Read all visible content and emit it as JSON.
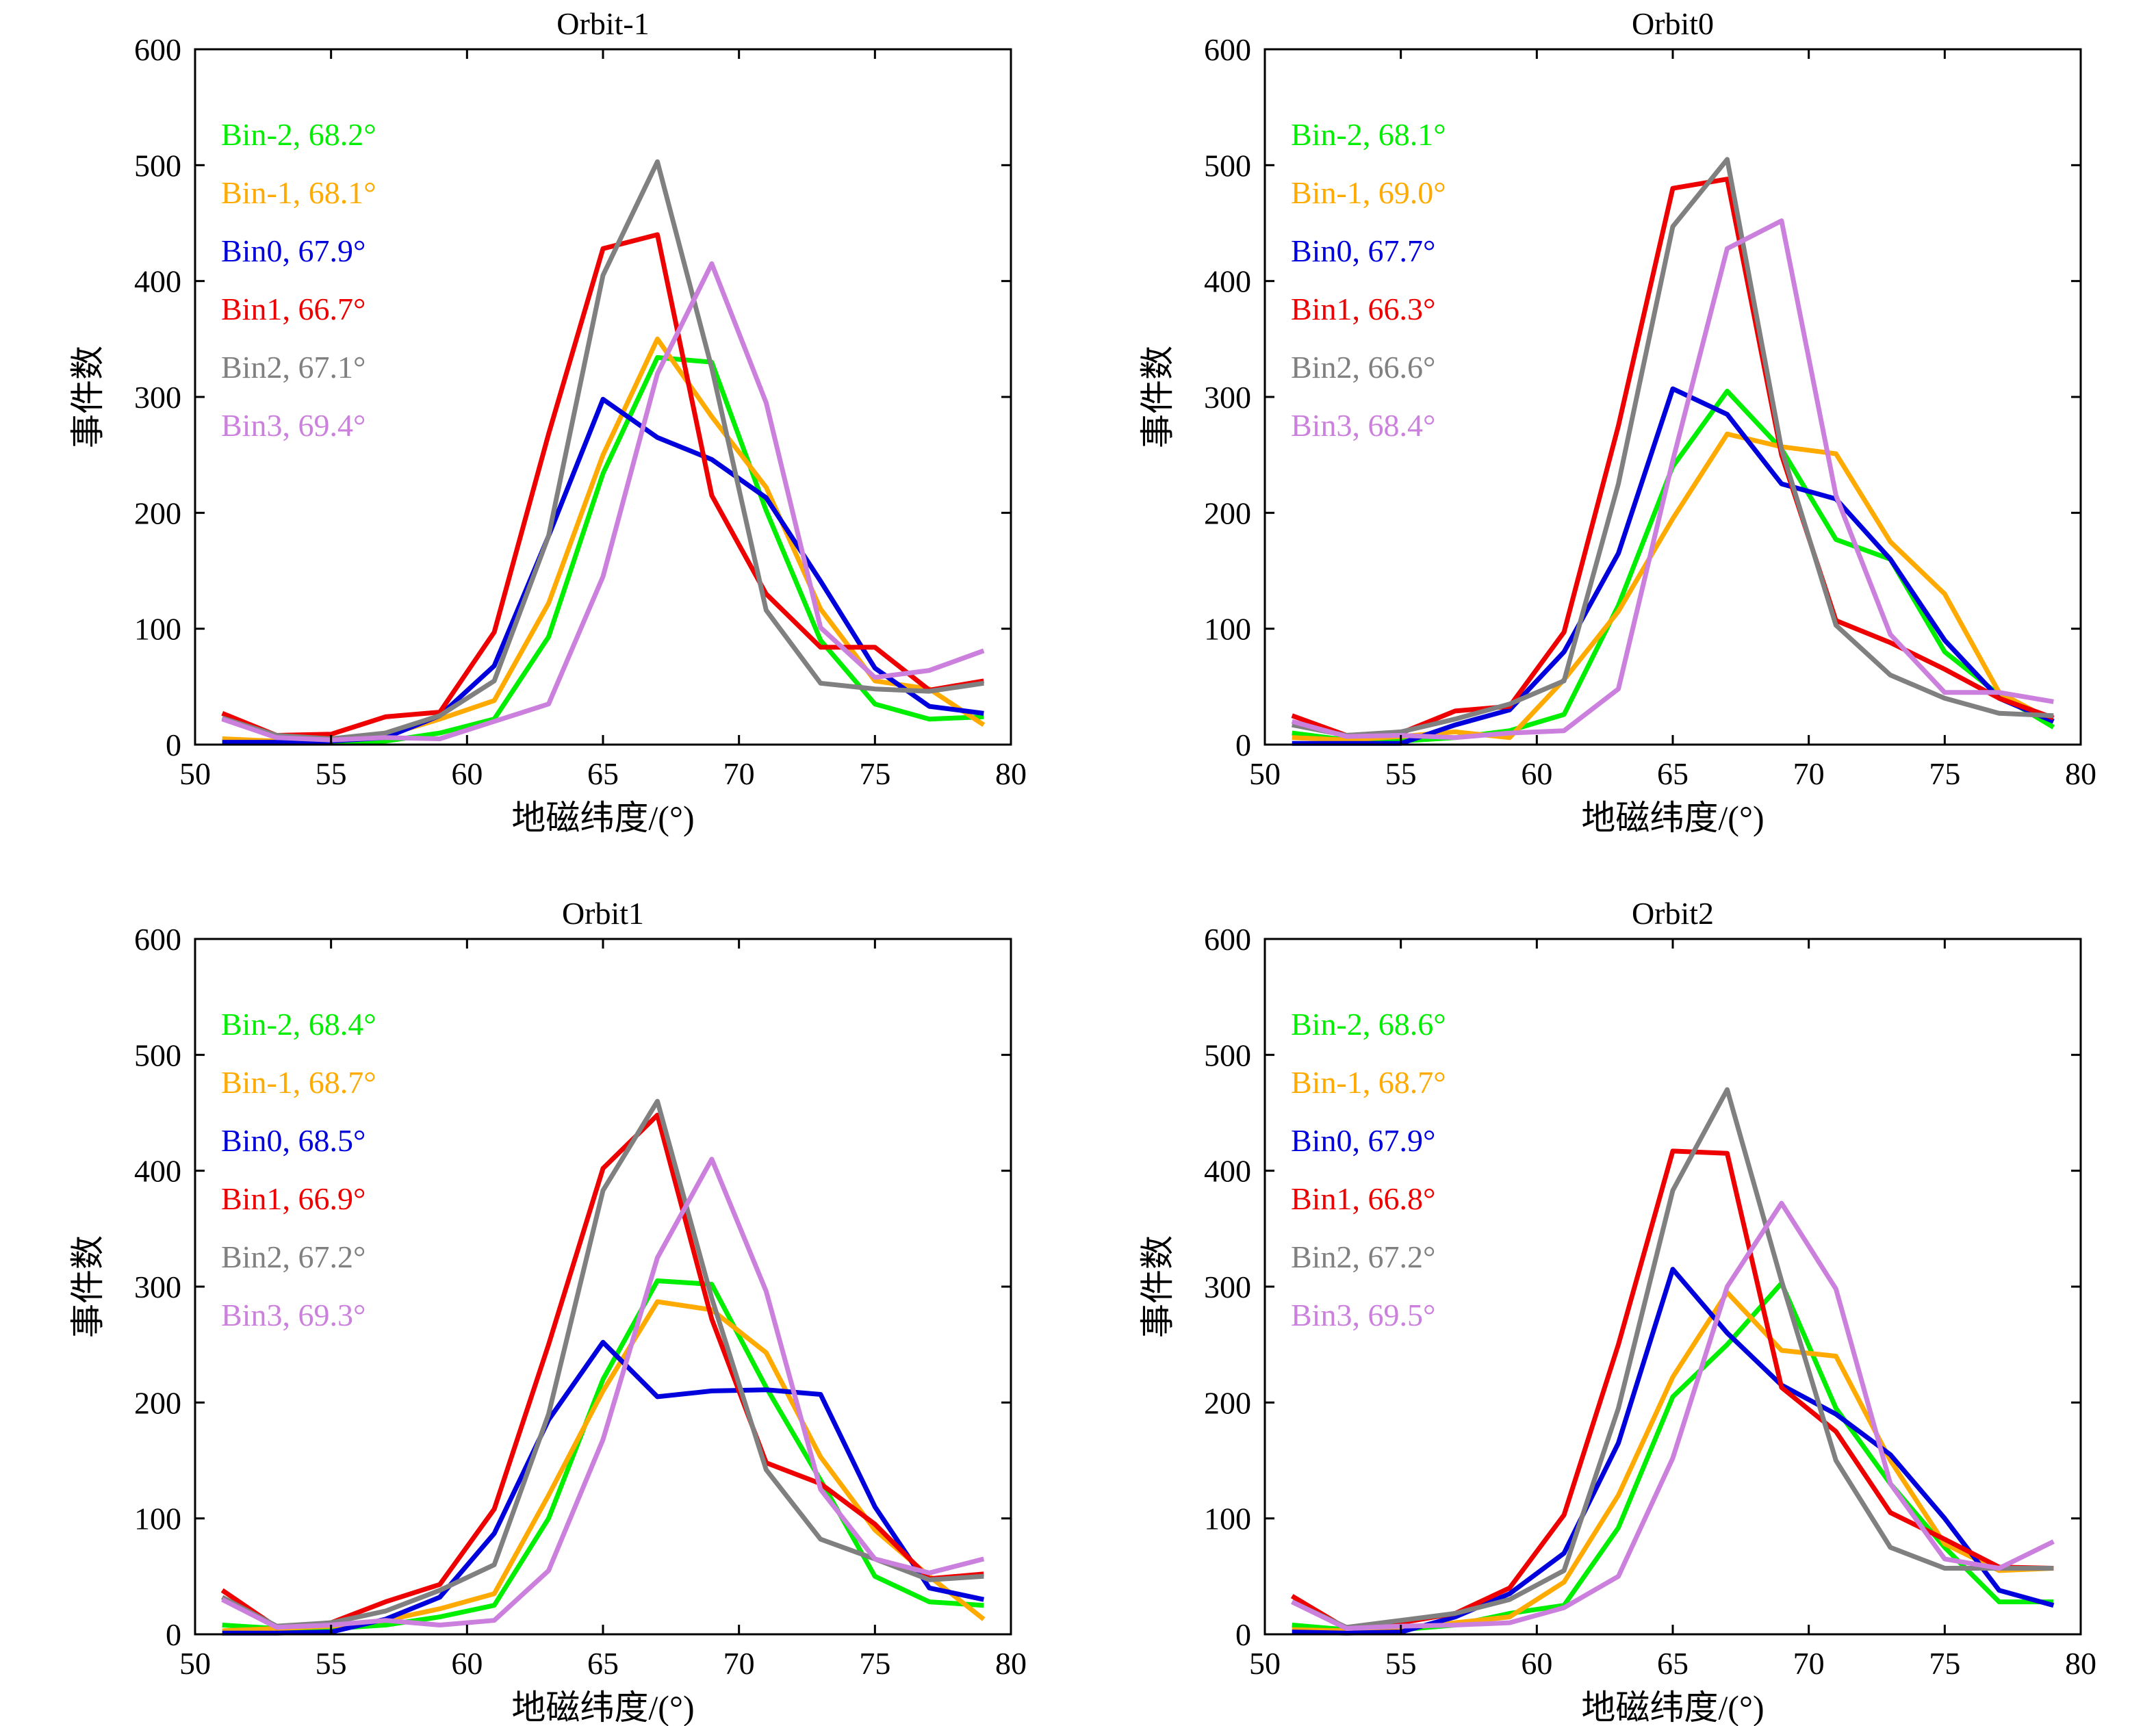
{
  "chart_data": [
    {
      "type": "line",
      "title": "Orbit-1",
      "xlabel": "地磁纬度/(°)",
      "ylabel": "事件数",
      "xlim": [
        50,
        80
      ],
      "ylim": [
        0,
        600
      ],
      "xticks": [
        "50",
        "55",
        "60",
        "65",
        "70",
        "75",
        "80"
      ],
      "yticks": [
        "0",
        "100",
        "200",
        "300",
        "400",
        "500",
        "600"
      ],
      "x": [
        51,
        53,
        55,
        57,
        59,
        61,
        63,
        65,
        67,
        69,
        71,
        73,
        75,
        77,
        79
      ],
      "legend_position": "top-left",
      "series": [
        {
          "name": "Bin-2, 68.2°",
          "color": "#00ee00",
          "values": [
            3,
            2,
            2,
            3,
            10,
            22,
            93,
            234,
            334,
            330,
            202,
            90,
            35,
            22,
            24
          ]
        },
        {
          "name": "Bin-1, 68.1°",
          "color": "#ffaa00",
          "values": [
            5,
            3,
            5,
            8,
            22,
            38,
            122,
            250,
            350,
            283,
            222,
            117,
            55,
            48,
            17
          ]
        },
        {
          "name": "Bin0, 67.9°",
          "color": "#0000dd",
          "values": [
            2,
            2,
            3,
            6,
            25,
            68,
            180,
            298,
            265,
            246,
            213,
            141,
            66,
            33,
            27
          ]
        },
        {
          "name": "Bin1, 66.7°",
          "color": "#ee0000",
          "values": [
            27,
            8,
            9,
            24,
            28,
            97,
            268,
            428,
            440,
            215,
            130,
            84,
            84,
            47,
            55
          ]
        },
        {
          "name": "Bin2, 67.1°",
          "color": "#808080",
          "values": [
            23,
            8,
            5,
            10,
            25,
            55,
            180,
            405,
            503,
            325,
            116,
            53,
            48,
            46,
            53
          ]
        },
        {
          "name": "Bin3, 69.4°",
          "color": "#cc80dd",
          "values": [
            22,
            6,
            4,
            6,
            5,
            20,
            35,
            145,
            320,
            415,
            295,
            101,
            58,
            64,
            81
          ]
        }
      ]
    },
    {
      "type": "line",
      "title": "Orbit0",
      "xlabel": "地磁纬度/(°)",
      "ylabel": "事件数",
      "xlim": [
        50,
        80
      ],
      "ylim": [
        0,
        600
      ],
      "xticks": [
        "50",
        "55",
        "60",
        "65",
        "70",
        "75",
        "80"
      ],
      "yticks": [
        "0",
        "100",
        "200",
        "300",
        "400",
        "500",
        "600"
      ],
      "x": [
        51,
        53,
        55,
        57,
        59,
        61,
        63,
        65,
        67,
        69,
        71,
        73,
        75,
        77,
        79
      ],
      "legend_position": "top-left",
      "series": [
        {
          "name": "Bin-2, 68.1°",
          "color": "#00ee00",
          "values": [
            10,
            4,
            3,
            6,
            12,
            26,
            120,
            240,
            305,
            255,
            177,
            160,
            80,
            43,
            15
          ]
        },
        {
          "name": "Bin-1, 69.0°",
          "color": "#ffaa00",
          "values": [
            6,
            4,
            7,
            11,
            6,
            56,
            115,
            195,
            268,
            257,
            251,
            175,
            130,
            45,
            20
          ]
        },
        {
          "name": "Bin0, 67.7°",
          "color": "#0000dd",
          "values": [
            1,
            1,
            1,
            17,
            30,
            80,
            165,
            307,
            285,
            225,
            212,
            160,
            90,
            40,
            20
          ]
        },
        {
          "name": "Bin1, 66.3°",
          "color": "#ee0000",
          "values": [
            25,
            8,
            10,
            29,
            33,
            97,
            275,
            480,
            488,
            250,
            107,
            88,
            65,
            40,
            23
          ]
        },
        {
          "name": "Bin2, 66.6°",
          "color": "#808080",
          "values": [
            17,
            8,
            11,
            22,
            35,
            55,
            225,
            447,
            505,
            255,
            103,
            60,
            40,
            27,
            25
          ]
        },
        {
          "name": "Bin3, 68.4°",
          "color": "#cc80dd",
          "values": [
            20,
            7,
            8,
            6,
            10,
            12,
            48,
            245,
            428,
            452,
            215,
            95,
            45,
            45,
            37
          ]
        }
      ]
    },
    {
      "type": "line",
      "title": "Orbit1",
      "xlabel": "地磁纬度/(°)",
      "ylabel": "事件数",
      "xlim": [
        50,
        80
      ],
      "ylim": [
        0,
        600
      ],
      "xticks": [
        "50",
        "55",
        "60",
        "65",
        "70",
        "75",
        "80"
      ],
      "yticks": [
        "0",
        "100",
        "200",
        "300",
        "400",
        "500",
        "600"
      ],
      "x": [
        51,
        53,
        55,
        57,
        59,
        61,
        63,
        65,
        67,
        69,
        71,
        73,
        75,
        77,
        79
      ],
      "legend_position": "top-left",
      "series": [
        {
          "name": "Bin-2, 68.4°",
          "color": "#00ee00",
          "values": [
            8,
            5,
            5,
            8,
            15,
            25,
            100,
            220,
            305,
            302,
            213,
            133,
            50,
            28,
            25
          ]
        },
        {
          "name": "Bin-1, 68.7°",
          "color": "#ffaa00",
          "values": [
            3,
            5,
            7,
            12,
            22,
            35,
            120,
            210,
            287,
            280,
            243,
            153,
            90,
            50,
            13
          ]
        },
        {
          "name": "Bin0, 68.5°",
          "color": "#0000dd",
          "values": [
            1,
            1,
            2,
            13,
            32,
            87,
            185,
            252,
            205,
            210,
            211,
            207,
            110,
            40,
            30
          ]
        },
        {
          "name": "Bin1, 66.9°",
          "color": "#ee0000",
          "values": [
            38,
            6,
            10,
            28,
            43,
            108,
            250,
            402,
            448,
            272,
            148,
            130,
            95,
            48,
            52
          ]
        },
        {
          "name": "Bin2, 67.2°",
          "color": "#808080",
          "values": [
            32,
            7,
            10,
            20,
            38,
            60,
            190,
            383,
            460,
            290,
            142,
            82,
            65,
            47,
            50
          ]
        },
        {
          "name": "Bin3, 69.3°",
          "color": "#cc80dd",
          "values": [
            30,
            6,
            8,
            12,
            8,
            12,
            55,
            168,
            325,
            410,
            296,
            125,
            65,
            53,
            65
          ]
        }
      ]
    },
    {
      "type": "line",
      "title": "Orbit2",
      "xlabel": "地磁纬度/(°)",
      "ylabel": "事件数",
      "xlim": [
        50,
        80
      ],
      "ylim": [
        0,
        600
      ],
      "xticks": [
        "50",
        "55",
        "60",
        "65",
        "70",
        "75",
        "80"
      ],
      "yticks": [
        "0",
        "100",
        "200",
        "300",
        "400",
        "500",
        "600"
      ],
      "x": [
        51,
        53,
        55,
        57,
        59,
        61,
        63,
        65,
        67,
        69,
        71,
        73,
        75,
        77,
        79
      ],
      "legend_position": "top-left",
      "series": [
        {
          "name": "Bin-2, 68.6°",
          "color": "#00ee00",
          "values": [
            8,
            4,
            4,
            8,
            18,
            25,
            92,
            205,
            250,
            303,
            195,
            130,
            75,
            28,
            28
          ]
        },
        {
          "name": "Bin-1, 68.7°",
          "color": "#ffaa00",
          "values": [
            4,
            3,
            5,
            10,
            15,
            45,
            120,
            222,
            295,
            245,
            240,
            150,
            78,
            55,
            57
          ]
        },
        {
          "name": "Bin0, 67.9°",
          "color": "#0000dd",
          "values": [
            2,
            1,
            2,
            15,
            35,
            70,
            165,
            315,
            260,
            215,
            190,
            155,
            100,
            38,
            25
          ]
        },
        {
          "name": "Bin1, 66.8°",
          "color": "#ee0000",
          "values": [
            33,
            5,
            10,
            18,
            40,
            103,
            250,
            417,
            415,
            213,
            175,
            105,
            82,
            58,
            57
          ]
        },
        {
          "name": "Bin2, 67.2°",
          "color": "#808080",
          "values": [
            28,
            6,
            12,
            18,
            30,
            55,
            195,
            383,
            470,
            305,
            150,
            75,
            57,
            57,
            57
          ]
        },
        {
          "name": "Bin3, 69.5°",
          "color": "#cc80dd",
          "values": [
            28,
            5,
            7,
            8,
            10,
            23,
            50,
            152,
            300,
            372,
            298,
            130,
            65,
            57,
            80
          ]
        }
      ]
    }
  ]
}
